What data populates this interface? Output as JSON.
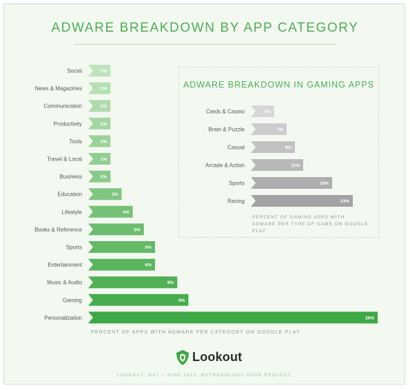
{
  "title": "ADWARE BREAKDOWN BY APP CATEGORY",
  "footer": "LOOKOUT, MAY – JUNE 2013. METHODOLOGY UPON REQUEST.",
  "logo": {
    "name": "Lookout",
    "icon": "lookout-shield-icon"
  },
  "colors": {
    "accent": "#4cae52",
    "bar_light": "#bfe3bb",
    "bar_dark": "#3ea844",
    "gaming_bar_light": "#d7d7d7",
    "gaming_bar_dark": "#a3a3a3"
  },
  "chart_data": [
    {
      "type": "bar",
      "orientation": "horizontal",
      "title": "ADWARE BREAKDOWN BY APP CATEGORY",
      "xlabel": "PERCENT OF APPS WITH ADWARE PER CATEGORY ON GOOGLE PLAY",
      "categories": [
        "Social",
        "News & Magazines",
        "Communication",
        "Productivity",
        "Tools",
        "Travel & Local",
        "Business",
        "Education",
        "Lifestyle",
        "Books & Reference",
        "Sports",
        "Entertainment",
        "Music & Audio",
        "Gaming",
        "Personalization"
      ],
      "values": [
        2,
        2,
        2,
        2,
        2,
        2,
        2,
        3,
        4,
        5,
        6,
        6,
        8,
        9,
        26
      ],
      "labels": [
        "2%",
        "2%",
        "2%",
        "2%",
        "2%",
        "2%",
        "2%",
        "3%",
        "4%",
        "5%",
        "6%",
        "6%",
        "8%",
        "9%",
        "26%"
      ],
      "xlim": [
        0,
        26
      ],
      "grid": false
    },
    {
      "type": "bar",
      "orientation": "horizontal",
      "title": "ADWARE BREAKDOWN IN GAMING APPS",
      "xlabel": "PERCENT OF GAMING APPS WITH ADWARE PER TYPE OF GAME ON GOOGLE PLAY",
      "categories": [
        "Cards & Casino",
        "Brain & Puzzle",
        "Casual",
        "Arcade & Action",
        "Sports",
        "Racing"
      ],
      "values": [
        4,
        7,
        9,
        11,
        18,
        23
      ],
      "labels": [
        "4%",
        "7%",
        "9%",
        "11%",
        "18%",
        "23%"
      ],
      "xlim": [
        0,
        23
      ],
      "grid": false
    }
  ]
}
